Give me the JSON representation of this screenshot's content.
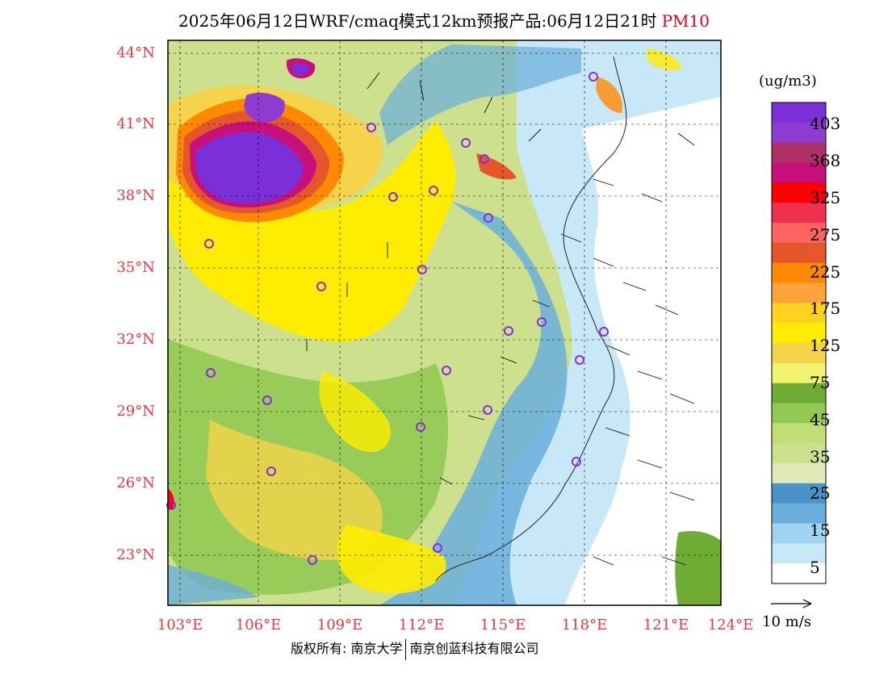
{
  "title": {
    "main": "2025年06月12日WRF/cmaq模式12km预报产品:06月12日21时",
    "variable": "PM10"
  },
  "map": {
    "lat_labels": [
      "44°N",
      "41°N",
      "38°N",
      "35°N",
      "32°N",
      "29°N",
      "26°N",
      "23°N"
    ],
    "lon_labels": [
      "103°E",
      "106°E",
      "109°E",
      "112°E",
      "115°E",
      "118°E",
      "121°E",
      "124°E"
    ]
  },
  "colorbar": {
    "unit": "(ug/m3)",
    "levels": [
      "403",
      "368",
      "325",
      "275",
      "225",
      "175",
      "125",
      "75",
      "45",
      "35",
      "25",
      "15",
      "5"
    ],
    "colors": [
      "#7b2fd6",
      "#8e3bd0",
      "#ad3166",
      "#c7107a",
      "#ff0000",
      "#f0304f",
      "#ff6461",
      "#e5562b",
      "#ff8a00",
      "#ffa43b",
      "#ffd21f",
      "#ffec00",
      "#f5d34a",
      "#f1f36e",
      "#6fac34",
      "#92c952",
      "#c1de77",
      "#cde08e",
      "#e0eab9",
      "#4a93c9",
      "#6aaedb",
      "#9fd4f2",
      "#c9e8f7",
      "#ffffff"
    ]
  },
  "wind_reference": "10 m/s",
  "footer": {
    "left": "版权所有: 南京大学",
    "right": "南京创蓝科技有限公司"
  }
}
